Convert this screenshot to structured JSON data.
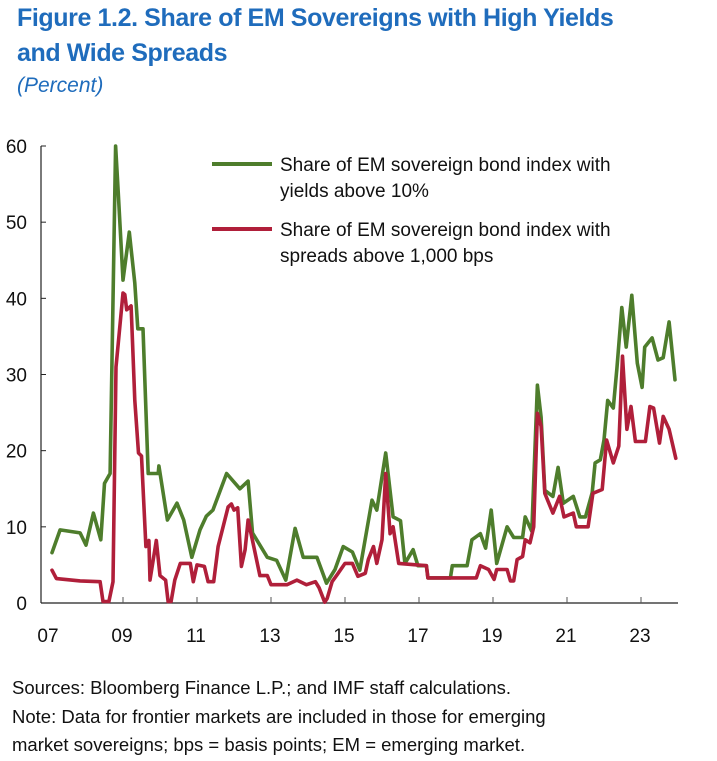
{
  "header": {
    "title_line1": "Figure 1.2. Share of EM Sovereigns with High Yields",
    "title_line2": "and Wide Spreads",
    "subtitle": "(Percent)"
  },
  "chart_data": {
    "type": "line",
    "title": "Figure 1.2. Share of EM Sovereigns with High Yields and Wide Spreads",
    "ylabel": "(Percent)",
    "ylim": [
      0,
      60
    ],
    "yticks": [
      "0",
      "10",
      "20",
      "30",
      "40",
      "50",
      "60"
    ],
    "xlim": [
      2006.8,
      2023.95
    ],
    "xticks": [
      "07",
      "09",
      "11",
      "13",
      "15",
      "17",
      "19",
      "21",
      "23"
    ],
    "grid": false,
    "legend_placement": "top-right",
    "series": [
      {
        "name": "Share of EM sovereign bond index with yields above 10%",
        "legend_line1": "Share of EM sovereign bond index with",
        "legend_line2": "yields above 10%",
        "color": "#4e7d2c",
        "points": [
          [
            2007.08,
            6.6
          ],
          [
            2007.3,
            9.6
          ],
          [
            2007.84,
            9.2
          ],
          [
            2008.0,
            7.6
          ],
          [
            2008.2,
            11.8
          ],
          [
            2008.4,
            8.3
          ],
          [
            2008.5,
            15.7
          ],
          [
            2008.65,
            17
          ],
          [
            2008.8,
            60
          ],
          [
            2008.87,
            54
          ],
          [
            2009.0,
            42.4
          ],
          [
            2009.17,
            48.7
          ],
          [
            2009.32,
            42
          ],
          [
            2009.4,
            36
          ],
          [
            2009.54,
            36
          ],
          [
            2009.68,
            17
          ],
          [
            2009.95,
            17
          ],
          [
            2009.97,
            18
          ],
          [
            2010.2,
            10.9
          ],
          [
            2010.46,
            13.1
          ],
          [
            2010.64,
            10.9
          ],
          [
            2010.86,
            6
          ],
          [
            2011.08,
            9.6
          ],
          [
            2011.25,
            11.4
          ],
          [
            2011.43,
            12.2
          ],
          [
            2011.8,
            17
          ],
          [
            2012.16,
            15
          ],
          [
            2012.38,
            16
          ],
          [
            2012.5,
            9.2
          ],
          [
            2012.9,
            6
          ],
          [
            2013.15,
            5.6
          ],
          [
            2013.4,
            3
          ],
          [
            2013.65,
            9.8
          ],
          [
            2013.87,
            6
          ],
          [
            2014.24,
            6
          ],
          [
            2014.5,
            2.6
          ],
          [
            2014.73,
            4.4
          ],
          [
            2014.95,
            7.4
          ],
          [
            2015.2,
            6.7
          ],
          [
            2015.4,
            4.3
          ],
          [
            2015.73,
            13.5
          ],
          [
            2015.86,
            12.2
          ],
          [
            2016.1,
            19.7
          ],
          [
            2016.3,
            11.3
          ],
          [
            2016.5,
            10.8
          ],
          [
            2016.62,
            5.2
          ],
          [
            2016.84,
            7
          ],
          [
            2016.97,
            4.9
          ],
          [
            2017.2,
            4.9
          ],
          [
            2017.24,
            3.3
          ],
          [
            2017.85,
            3.3
          ],
          [
            2017.9,
            4.9
          ],
          [
            2018.3,
            4.9
          ],
          [
            2018.43,
            8.3
          ],
          [
            2018.66,
            9.1
          ],
          [
            2018.8,
            7.2
          ],
          [
            2018.95,
            12.2
          ],
          [
            2019.1,
            5.2
          ],
          [
            2019.38,
            10
          ],
          [
            2019.56,
            8.6
          ],
          [
            2019.8,
            8.6
          ],
          [
            2019.87,
            11.3
          ],
          [
            2020.05,
            9.4
          ],
          [
            2020.2,
            28.6
          ],
          [
            2020.3,
            24.4
          ],
          [
            2020.4,
            14.8
          ],
          [
            2020.62,
            14
          ],
          [
            2020.76,
            17.8
          ],
          [
            2020.9,
            13.1
          ],
          [
            2021.17,
            14
          ],
          [
            2021.35,
            11.3
          ],
          [
            2021.5,
            11.3
          ],
          [
            2021.68,
            14.5
          ],
          [
            2021.76,
            18.4
          ],
          [
            2021.9,
            18.8
          ],
          [
            2022.0,
            21.4
          ],
          [
            2022.1,
            26.6
          ],
          [
            2022.25,
            25.6
          ],
          [
            2022.35,
            30.8
          ],
          [
            2022.48,
            38.8
          ],
          [
            2022.6,
            33.6
          ],
          [
            2022.75,
            40.4
          ],
          [
            2022.9,
            31.5
          ],
          [
            2023.03,
            28.3
          ],
          [
            2023.1,
            33.6
          ],
          [
            2023.3,
            34.8
          ],
          [
            2023.46,
            31.9
          ],
          [
            2023.6,
            32.2
          ],
          [
            2023.76,
            36.9
          ],
          [
            2023.92,
            29.3
          ]
        ]
      },
      {
        "name": "Share of EM sovereign bond index with spreads above 1,000 bps",
        "legend_line1": "Share of EM sovereign bond index with",
        "legend_line2": "spreads above 1,000 bps",
        "color": "#b01f3a",
        "points": [
          [
            2007.08,
            4.3
          ],
          [
            2007.2,
            3.2
          ],
          [
            2007.84,
            2.9
          ],
          [
            2008.38,
            2.8
          ],
          [
            2008.46,
            0.2
          ],
          [
            2008.62,
            0.2
          ],
          [
            2008.73,
            2.8
          ],
          [
            2008.81,
            31
          ],
          [
            2008.87,
            34
          ],
          [
            2009.0,
            40.7
          ],
          [
            2009.05,
            40.5
          ],
          [
            2009.1,
            38.5
          ],
          [
            2009.22,
            39
          ],
          [
            2009.32,
            26.6
          ],
          [
            2009.42,
            19.7
          ],
          [
            2009.5,
            19.3
          ],
          [
            2009.62,
            7.4
          ],
          [
            2009.7,
            8.2
          ],
          [
            2009.73,
            3
          ],
          [
            2009.9,
            8.2
          ],
          [
            2010.0,
            3.6
          ],
          [
            2010.15,
            3
          ],
          [
            2010.22,
            0.2
          ],
          [
            2010.3,
            0.2
          ],
          [
            2010.4,
            3
          ],
          [
            2010.55,
            5.2
          ],
          [
            2010.82,
            5.2
          ],
          [
            2010.9,
            2.8
          ],
          [
            2011.0,
            5
          ],
          [
            2011.2,
            4.8
          ],
          [
            2011.3,
            2.8
          ],
          [
            2011.45,
            2.8
          ],
          [
            2011.57,
            7.4
          ],
          [
            2011.84,
            12.6
          ],
          [
            2011.93,
            13
          ],
          [
            2012.0,
            12.2
          ],
          [
            2012.1,
            12.5
          ],
          [
            2012.2,
            4.8
          ],
          [
            2012.3,
            7
          ],
          [
            2012.38,
            10.9
          ],
          [
            2012.5,
            8.2
          ],
          [
            2012.7,
            3.6
          ],
          [
            2012.9,
            3.6
          ],
          [
            2013.0,
            2.4
          ],
          [
            2013.43,
            2.4
          ],
          [
            2013.7,
            3
          ],
          [
            2013.96,
            2.4
          ],
          [
            2014.2,
            2.8
          ],
          [
            2014.3,
            2
          ],
          [
            2014.45,
            0.1
          ],
          [
            2014.52,
            0.6
          ],
          [
            2014.65,
            2.8
          ],
          [
            2014.8,
            3.8
          ],
          [
            2015.0,
            5.2
          ],
          [
            2015.2,
            5.2
          ],
          [
            2015.35,
            3.5
          ],
          [
            2015.55,
            3.9
          ],
          [
            2015.63,
            5.7
          ],
          [
            2015.77,
            7.4
          ],
          [
            2015.86,
            5.2
          ],
          [
            2016.0,
            8.3
          ],
          [
            2016.1,
            17
          ],
          [
            2016.22,
            9.1
          ],
          [
            2016.3,
            10
          ],
          [
            2016.45,
            5.2
          ],
          [
            2017.2,
            4.9
          ],
          [
            2017.24,
            3.3
          ],
          [
            2018.55,
            3.3
          ],
          [
            2018.66,
            4.9
          ],
          [
            2018.88,
            4.4
          ],
          [
            2019.03,
            3.1
          ],
          [
            2019.1,
            4.4
          ],
          [
            2019.38,
            4.4
          ],
          [
            2019.47,
            2.9
          ],
          [
            2019.56,
            2.9
          ],
          [
            2019.65,
            5.7
          ],
          [
            2019.8,
            6.1
          ],
          [
            2019.87,
            8.3
          ],
          [
            2020.0,
            7.9
          ],
          [
            2020.1,
            10
          ],
          [
            2020.2,
            24.9
          ],
          [
            2020.3,
            23.2
          ],
          [
            2020.4,
            14.4
          ],
          [
            2020.62,
            11.8
          ],
          [
            2020.8,
            14
          ],
          [
            2020.92,
            11.3
          ],
          [
            2021.17,
            11.8
          ],
          [
            2021.25,
            10
          ],
          [
            2021.57,
            10
          ],
          [
            2021.7,
            14.4
          ],
          [
            2021.95,
            14.9
          ],
          [
            2022.07,
            21.4
          ],
          [
            2022.25,
            18.4
          ],
          [
            2022.4,
            20.6
          ],
          [
            2022.5,
            32.4
          ],
          [
            2022.62,
            22.8
          ],
          [
            2022.73,
            25.8
          ],
          [
            2022.85,
            21.2
          ],
          [
            2023.12,
            21.2
          ],
          [
            2023.24,
            25.8
          ],
          [
            2023.34,
            25.6
          ],
          [
            2023.5,
            21
          ],
          [
            2023.6,
            24.5
          ],
          [
            2023.76,
            22.8
          ],
          [
            2023.94,
            19
          ]
        ]
      }
    ]
  },
  "footer": {
    "sources": "Sources: Bloomberg Finance L.P.; and IMF staff calculations.",
    "note_line1": "Note: Data for frontier markets are included in those for emerging",
    "note_line2": "market sovereigns; bps = basis points; EM = emerging market."
  }
}
